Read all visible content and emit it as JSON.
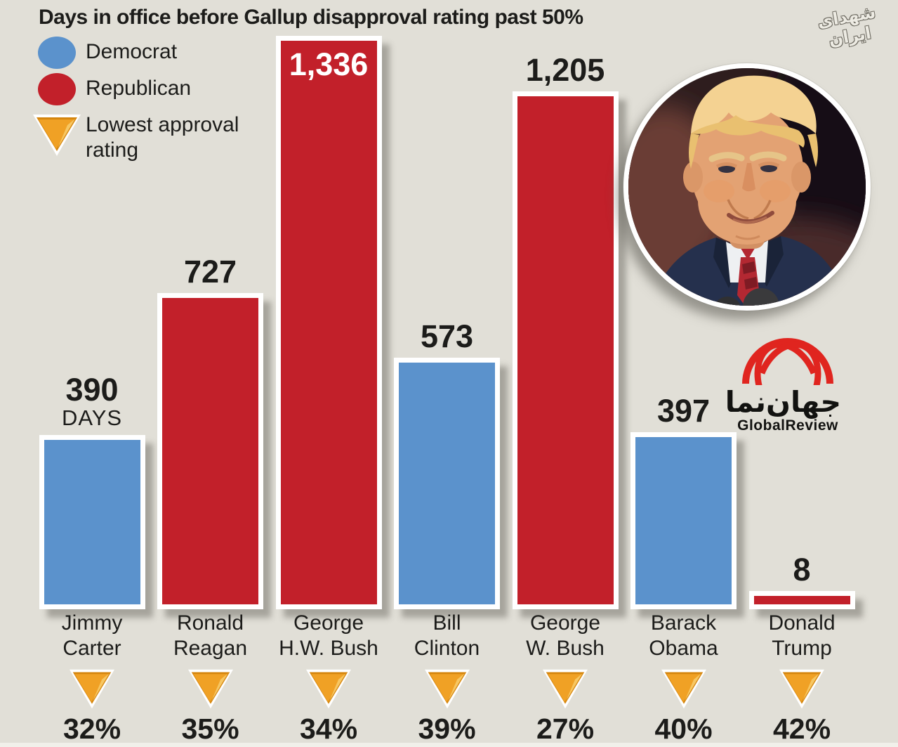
{
  "title": "Days in office before Gallup disapproval rating past 50%",
  "legend": {
    "democrat_label": "Democrat",
    "republican_label": "Republican",
    "lowest_label_line1": "Lowest approval",
    "lowest_label_line2": "rating"
  },
  "watermark_text": "شهدای ایران",
  "logo": {
    "persian_name": "جهان‌نما",
    "latin_name": "GlobalReview"
  },
  "colors": {
    "democrat": "#5b92cc",
    "republican": "#c2202a",
    "triangle_main": "#f0a125",
    "triangle_dark": "#d5860e",
    "triangle_light": "#f7c763",
    "background": "#e1dfd7",
    "bar_border": "#ffffff",
    "logo_red": "#e0251f",
    "text": "#1c1c1a"
  },
  "chart_data": {
    "type": "bar",
    "title": "Days in office before Gallup disapproval rating past 50%",
    "unit": "DAYS",
    "categories": [
      "Jimmy Carter",
      "Ronald Reagan",
      "George H.W. Bush",
      "Bill Clinton",
      "George W. Bush",
      "Barack Obama",
      "Donald Trump"
    ],
    "values": [
      390,
      727,
      1336,
      573,
      1205,
      397,
      8
    ],
    "value_labels": [
      "390",
      "727",
      "1,336",
      "573",
      "1,205",
      "397",
      "8"
    ],
    "party": [
      "Democrat",
      "Republican",
      "Republican",
      "Democrat",
      "Republican",
      "Democrat",
      "Republican"
    ],
    "lowest_approval_rating": [
      "32%",
      "35%",
      "34%",
      "39%",
      "27%",
      "40%",
      "42%"
    ],
    "legend_entries": [
      "Democrat",
      "Republican",
      "Lowest approval rating"
    ],
    "ylim": [
      0,
      1336
    ],
    "grid": false,
    "legend_position": "top-left"
  },
  "bars": [
    {
      "name_line1": "Jimmy",
      "name_line2": "Carter",
      "value_label": "390",
      "sub_label": "DAYS",
      "pct": "32%",
      "party": "democrat",
      "label_inside": false
    },
    {
      "name_line1": "Ronald",
      "name_line2": "Reagan",
      "value_label": "727",
      "sub_label": "",
      "pct": "35%",
      "party": "republican",
      "label_inside": false
    },
    {
      "name_line1": "George",
      "name_line2": "H.W. Bush",
      "value_label": "1,336",
      "sub_label": "",
      "pct": "34%",
      "party": "republican",
      "label_inside": true
    },
    {
      "name_line1": "Bill",
      "name_line2": "Clinton",
      "value_label": "573",
      "sub_label": "",
      "pct": "39%",
      "party": "democrat",
      "label_inside": false
    },
    {
      "name_line1": "George",
      "name_line2": "W. Bush",
      "value_label": "1,205",
      "sub_label": "",
      "pct": "27%",
      "party": "republican",
      "label_inside": false
    },
    {
      "name_line1": "Barack",
      "name_line2": "Obama",
      "value_label": "397",
      "sub_label": "",
      "pct": "40%",
      "party": "democrat",
      "label_inside": false
    },
    {
      "name_line1": "Donald",
      "name_line2": "Trump",
      "value_label": "8",
      "sub_label": "",
      "pct": "42%",
      "party": "republican",
      "label_inside": false
    }
  ]
}
